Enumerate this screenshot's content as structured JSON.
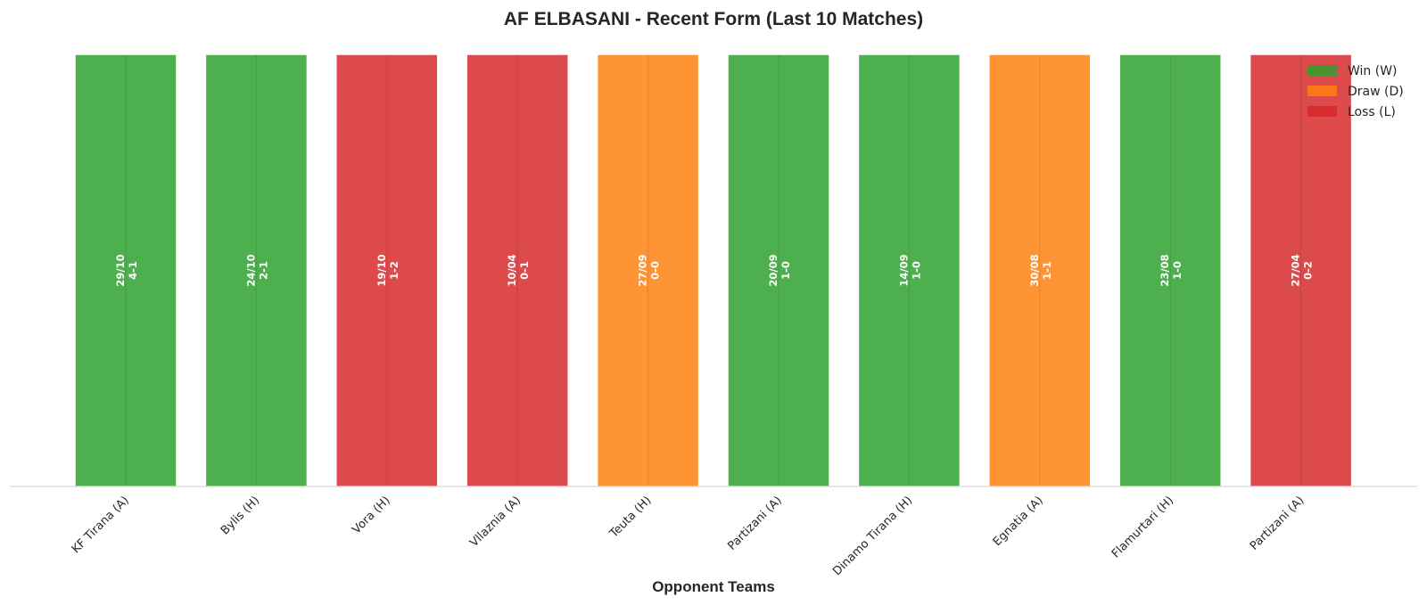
{
  "chart_data": {
    "type": "bar",
    "title": "AF ELBASANI - Recent Form (Last 10 Matches)",
    "xlabel": "Opponent Teams",
    "ylabel": "",
    "categories": [
      "KF Tirana (A)",
      "Bylis (H)",
      "Vora (H)",
      "Vllaznia (A)",
      "Teuta (H)",
      "Partizani (A)",
      "Dinamo Tirana (H)",
      "Egnatia (A)",
      "Flamurtari (H)",
      "Partizani (A)"
    ],
    "values": [
      1,
      1,
      1,
      1,
      1,
      1,
      1,
      1,
      1,
      1
    ],
    "results": [
      "W",
      "W",
      "L",
      "L",
      "D",
      "W",
      "W",
      "D",
      "W",
      "L"
    ],
    "dates": [
      "29/10",
      "24/10",
      "19/10",
      "10/04",
      "27/09",
      "20/09",
      "14/09",
      "30/08",
      "23/08",
      "27/04"
    ],
    "scores": [
      "4-1",
      "2-1",
      "1-2",
      "0-1",
      "0-0",
      "1-0",
      "1-0",
      "1-1",
      "1-0",
      "0-2"
    ],
    "colors": {
      "W": "#2ca02c",
      "D": "#ff7f0e",
      "L": "#d62728"
    },
    "legend": [
      {
        "key": "W",
        "label": "Win (W)"
      },
      {
        "key": "D",
        "label": "Draw (D)"
      },
      {
        "key": "L",
        "label": "Loss (L)"
      }
    ],
    "legend_position": "top-right",
    "grid": false
  }
}
